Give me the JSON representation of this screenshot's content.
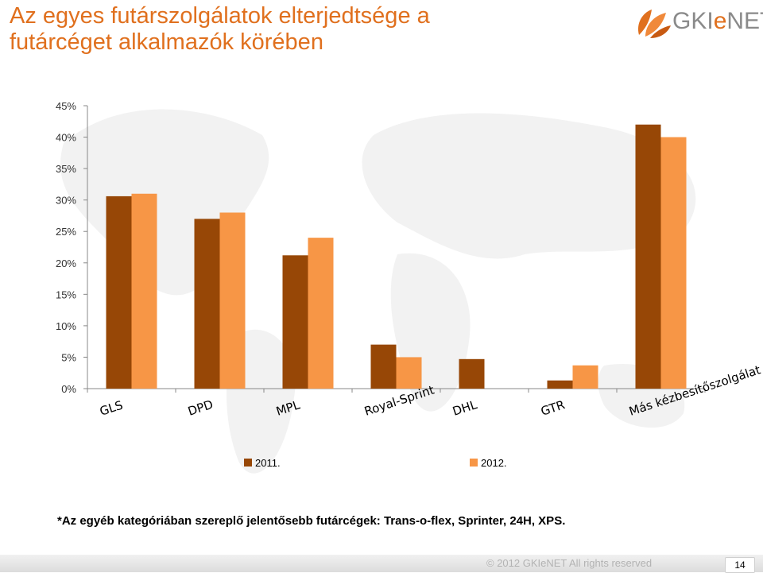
{
  "title": {
    "line1": "Az egyes futárszolgálatok elterjedtsége a",
    "line2": "futárcéget alkalmazók körében"
  },
  "logo": {
    "text_start": "GKI",
    "text_accent": "e",
    "text_end": "NET"
  },
  "note": "*Az egyéb kategóriában szereplő jelentősebb futárcégek: Trans-o-flex, Sprinter, 24H, XPS.",
  "footer": {
    "copyright": "© 2012  GKIeNET  All rights reserved",
    "page": "14"
  },
  "colors": {
    "accent": "#E0701E",
    "series_2011": "#974706",
    "series_2012": "#F79646"
  },
  "chart_data": {
    "type": "bar",
    "categories": [
      "GLS",
      "DPD",
      "MPL",
      "Royal-Sprint",
      "DHL",
      "GTR",
      "Más kézbesítőszolgálat"
    ],
    "series": [
      {
        "name": "2011.",
        "values": [
          30.6,
          27.0,
          21.2,
          7.0,
          4.7,
          1.3,
          42.0
        ],
        "color": "#974706"
      },
      {
        "name": "2012.",
        "values": [
          31.0,
          28.0,
          24.0,
          5.0,
          null,
          3.7,
          40.0
        ],
        "color": "#F79646"
      }
    ],
    "y_ticks": [
      "0%",
      "5%",
      "10%",
      "15%",
      "20%",
      "25%",
      "30%",
      "35%",
      "40%",
      "45%"
    ],
    "ylim": [
      0,
      45
    ],
    "legend_position": "bottom",
    "grid": false
  }
}
